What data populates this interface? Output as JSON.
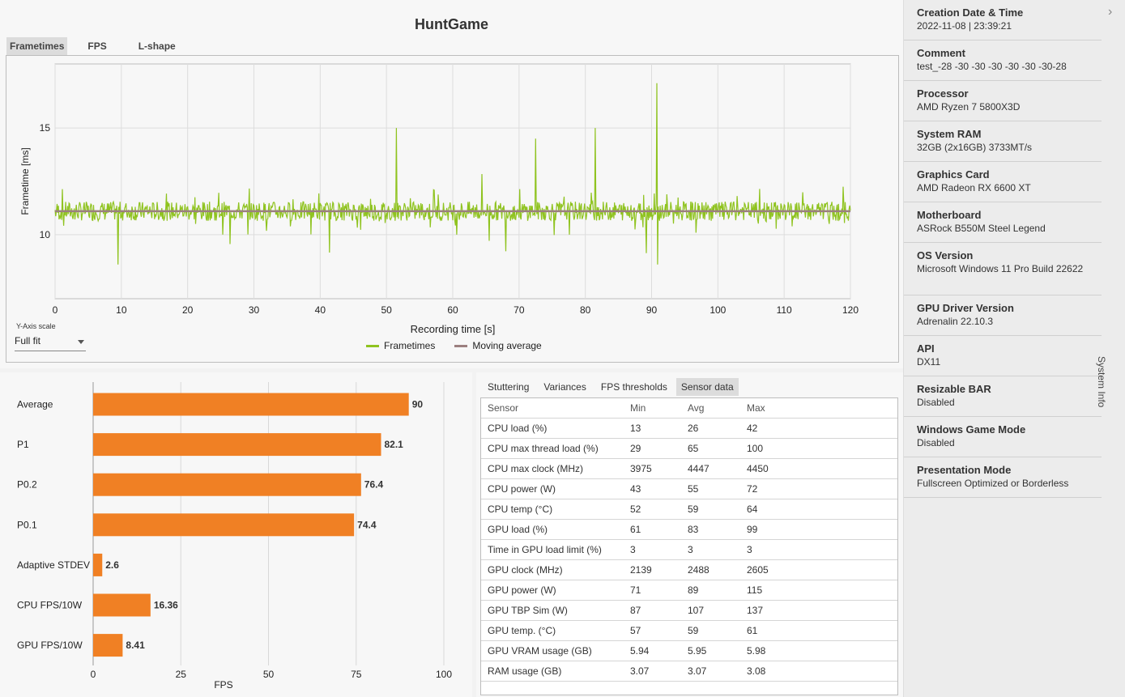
{
  "app": {
    "title": "HuntGame"
  },
  "chart_tabs": [
    "Frametimes",
    "FPS",
    "L-shape"
  ],
  "frametime_chart": {
    "type": "line",
    "xlabel": "Recording time [s]",
    "ylabel": "Frametime [ms]",
    "xlim": [
      0,
      120
    ],
    "ylim": [
      7,
      18
    ],
    "x_ticks": [
      "0",
      "10",
      "20",
      "30",
      "40",
      "50",
      "60",
      "70",
      "80",
      "90",
      "100",
      "110",
      "120"
    ],
    "y_ticks": [
      "10",
      "15"
    ],
    "grid": true,
    "series_names": [
      "Frametimes",
      "Moving average"
    ],
    "colors": {
      "frametimes": "#8fc31f",
      "moving_average": "#9b7f7f"
    },
    "moving_average_ms": 11.1,
    "notable_spikes": [
      {
        "x": 51.5,
        "y": 15.0
      },
      {
        "x": 90.8,
        "y": 17.1
      },
      {
        "x": 90.9,
        "y": 8.6
      },
      {
        "x": 81.5,
        "y": 15.0
      },
      {
        "x": 72.5,
        "y": 14.5
      },
      {
        "x": 9.5,
        "y": 8.6
      }
    ]
  },
  "y_axis_scale": {
    "label": "Y-Axis scale",
    "value": "Full fit"
  },
  "bar_chart": {
    "type": "bar",
    "categories": [
      "Average",
      "P1",
      "P0.2",
      "P0.1",
      "Adaptive STDEV",
      "CPU FPS/10W",
      "GPU FPS/10W"
    ],
    "values": [
      90,
      82.1,
      76.4,
      74.4,
      2.6,
      16.36,
      8.41
    ],
    "value_labels": [
      "90",
      "82.1",
      "76.4",
      "74.4",
      "2.6",
      "16.36",
      "8.41"
    ],
    "xlabel": "FPS",
    "xlim": [
      0,
      100
    ],
    "x_ticks": [
      "0",
      "25",
      "50",
      "75",
      "100"
    ],
    "color": "#f08024"
  },
  "analysis_tabs": [
    "Stuttering",
    "Variances",
    "FPS thresholds",
    "Sensor data"
  ],
  "sensor_table": {
    "headers": [
      "Sensor",
      "Min",
      "Avg",
      "Max"
    ],
    "rows": [
      [
        "CPU load (%)",
        "13",
        "26",
        "42"
      ],
      [
        "CPU max thread load (%)",
        "29",
        "65",
        "100"
      ],
      [
        "CPU max clock (MHz)",
        "3975",
        "4447",
        "4450"
      ],
      [
        "CPU power (W)",
        "43",
        "55",
        "72"
      ],
      [
        "CPU temp (°C)",
        "52",
        "59",
        "64"
      ],
      [
        "GPU load (%)",
        "61",
        "83",
        "99"
      ],
      [
        "Time in GPU load limit (%)",
        "3",
        "3",
        "3"
      ],
      [
        "GPU clock (MHz)",
        "2139",
        "2488",
        "2605"
      ],
      [
        "GPU power (W)",
        "71",
        "89",
        "115"
      ],
      [
        "GPU TBP Sim (W)",
        "87",
        "107",
        "137"
      ],
      [
        "GPU temp. (°C)",
        "57",
        "59",
        "61"
      ],
      [
        "GPU VRAM usage (GB)",
        "5.94",
        "5.95",
        "5.98"
      ],
      [
        "RAM usage (GB)",
        "3.07",
        "3.07",
        "3.08"
      ]
    ]
  },
  "system_info": {
    "panel_label": "System Info",
    "items": [
      {
        "label": "Creation Date & Time",
        "value": "2022-11-08  |  23:39:21"
      },
      {
        "label": "Comment",
        "value": "test_-28 -30 -30 -30 -30 -30 -30-28"
      },
      {
        "label": "Processor",
        "value": "AMD Ryzen 7 5800X3D"
      },
      {
        "label": "System RAM",
        "value": "32GB (2x16GB) 3733MT/s"
      },
      {
        "label": "Graphics Card",
        "value": "AMD Radeon RX 6600 XT"
      },
      {
        "label": "Motherboard",
        "value": "ASRock B550M Steel Legend"
      },
      {
        "label": "OS Version",
        "value": "Microsoft Windows 11 Pro Build 22622"
      },
      {
        "label": "GPU Driver Version",
        "value": "Adrenalin 22.10.3"
      },
      {
        "label": "API",
        "value": "DX11"
      },
      {
        "label": "Resizable BAR",
        "value": "Disabled"
      },
      {
        "label": "Windows Game Mode",
        "value": "Disabled"
      },
      {
        "label": "Presentation Mode",
        "value": "Fullscreen Optimized or Borderless"
      }
    ]
  }
}
